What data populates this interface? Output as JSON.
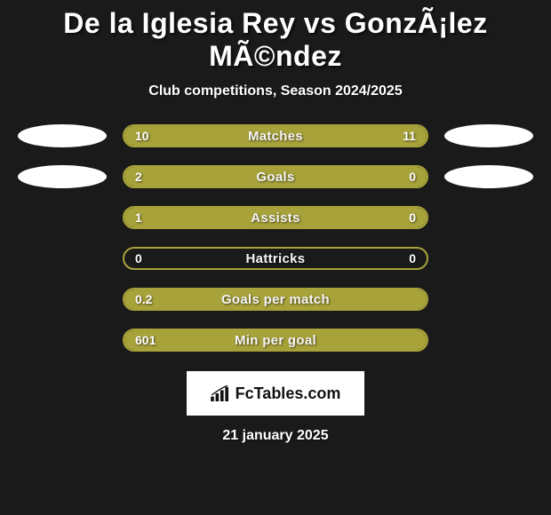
{
  "title": "De la Iglesia Rey vs GonzÃ¡lez MÃ©ndez",
  "subtitle": "Club competitions, Season 2024/2025",
  "brand": "FcTables.com",
  "date": "21 january 2025",
  "colors": {
    "background": "#1a1a1a",
    "bar_outline": "#a8a23a",
    "bar_fill": "#a8a23a",
    "oval_fill": "#ffffff",
    "text": "#ffffff"
  },
  "stats": [
    {
      "label": "Matches",
      "left_value": "10",
      "right_value": "11",
      "left_pct": 47.6,
      "right_pct": 52.4,
      "show_ovals": true
    },
    {
      "label": "Goals",
      "left_value": "2",
      "right_value": "0",
      "left_pct": 76,
      "right_pct": 24,
      "show_ovals": true
    },
    {
      "label": "Assists",
      "left_value": "1",
      "right_value": "0",
      "left_pct": 76,
      "right_pct": 24,
      "show_ovals": false
    },
    {
      "label": "Hattricks",
      "left_value": "0",
      "right_value": "0",
      "left_pct": 0,
      "right_pct": 0,
      "show_ovals": false
    },
    {
      "label": "Goals per match",
      "left_value": "0.2",
      "right_value": "",
      "left_pct": 100,
      "right_pct": 0,
      "show_ovals": false
    },
    {
      "label": "Min per goal",
      "left_value": "601",
      "right_value": "",
      "left_pct": 100,
      "right_pct": 0,
      "show_ovals": false
    }
  ]
}
